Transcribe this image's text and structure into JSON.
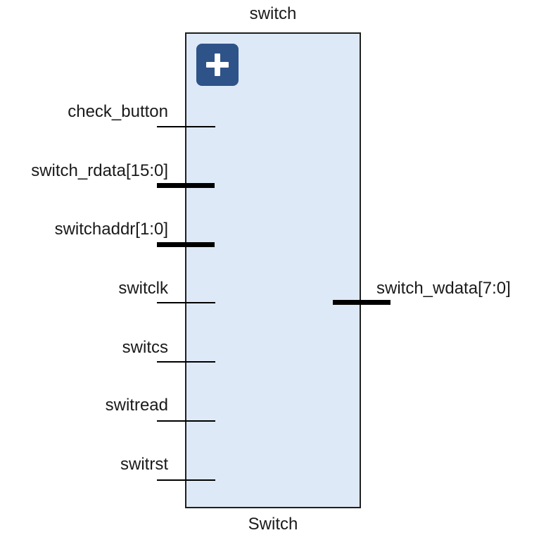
{
  "instance_name": "switch",
  "module_name": "Switch",
  "expand_icon": "plus-icon",
  "inputs": [
    {
      "label": "check_button"
    },
    {
      "label": "switch_rdata[15:0]"
    },
    {
      "label": "switchaddr[1:0]"
    },
    {
      "label": "switclk"
    },
    {
      "label": "switcs"
    },
    {
      "label": "switread"
    },
    {
      "label": "switrst"
    }
  ],
  "outputs": [
    {
      "label": "switch_wdata[7:0]"
    }
  ],
  "colors": {
    "block_fill": "#dde9f7",
    "block_border": "#1f1f1f",
    "icon_bg": "#2e5388",
    "wire": "#000000"
  }
}
